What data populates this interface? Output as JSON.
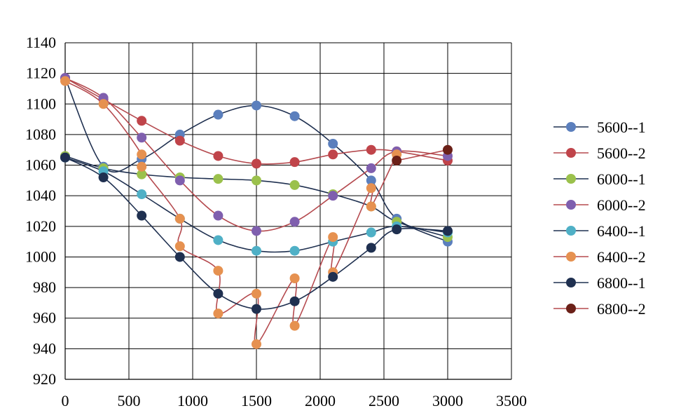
{
  "chart_data": {
    "type": "line",
    "title": "",
    "xlabel": "",
    "ylabel": "",
    "xlim": [
      0,
      3500
    ],
    "ylim": [
      920,
      1140
    ],
    "x_ticks": [
      0,
      500,
      1000,
      1500,
      2000,
      2500,
      3000,
      3500
    ],
    "y_ticks": [
      920,
      940,
      960,
      980,
      1000,
      1020,
      1040,
      1060,
      1080,
      1100,
      1120,
      1140
    ],
    "grid": true,
    "legend_position": "right",
    "series": [
      {
        "name": "5600--1",
        "marker_color": "#5b7fbd",
        "line_color": "#1f3050",
        "x": [
          0,
          300,
          600,
          900,
          1200,
          1500,
          1800,
          2100,
          2400,
          2600,
          3000
        ],
        "y": [
          1117,
          1059,
          1064,
          1080,
          1093,
          1099,
          1092,
          1074,
          1050,
          1025,
          1010
        ]
      },
      {
        "name": "5600--2",
        "marker_color": "#c0444a",
        "line_color": "#b54a4f",
        "x": [
          0,
          300,
          600,
          900,
          1200,
          1500,
          1800,
          2100,
          2400,
          2600,
          3000
        ],
        "y": [
          1117,
          1103,
          1089,
          1076,
          1066,
          1061,
          1062,
          1067,
          1070,
          1069,
          1063
        ]
      },
      {
        "name": "6000--1",
        "marker_color": "#9bc14c",
        "line_color": "#1f3050",
        "x": [
          0,
          300,
          600,
          900,
          1200,
          1500,
          1800,
          2100,
          2400,
          2600,
          3000
        ],
        "y": [
          1066,
          1058,
          1054,
          1052,
          1051,
          1050,
          1047,
          1041,
          1033,
          1023,
          1013
        ]
      },
      {
        "name": "6000--2",
        "marker_color": "#7f5fae",
        "line_color": "#b54a4f",
        "x": [
          0,
          300,
          600,
          900,
          1200,
          1500,
          1800,
          2100,
          2400,
          2600,
          3000
        ],
        "y": [
          1117,
          1104,
          1078,
          1050,
          1027,
          1017,
          1023,
          1040,
          1058,
          1069,
          1066
        ]
      },
      {
        "name": "6400--1",
        "marker_color": "#4fb0c6",
        "line_color": "#1f3050",
        "x": [
          0,
          300,
          600,
          900,
          1200,
          1500,
          1800,
          2100,
          2400,
          2600,
          3000
        ],
        "y": [
          1065,
          1056,
          1041,
          1025,
          1011,
          1004,
          1004,
          1010,
          1016,
          1020,
          1016
        ]
      },
      {
        "name": "6400--2",
        "marker_color": "#e69150",
        "line_color": "#b54a4f",
        "x": [
          0,
          300,
          600,
          600,
          900,
          900,
          1200,
          1200,
          1500,
          1500,
          1800,
          1800,
          2100,
          2100,
          2400,
          2400,
          2600
        ],
        "y": [
          1115,
          1100,
          1067,
          1059,
          1025,
          1007,
          991,
          963,
          976,
          943,
          986,
          955,
          1013,
          990,
          1045,
          1033,
          1067
        ]
      },
      {
        "name": "6800--1",
        "marker_color": "#1f3050",
        "line_color": "#1f3050",
        "x": [
          0,
          300,
          600,
          900,
          1200,
          1500,
          1800,
          2100,
          2400,
          2600,
          3000
        ],
        "y": [
          1065,
          1052,
          1027,
          1000,
          976,
          966,
          971,
          987,
          1006,
          1018,
          1017
        ]
      },
      {
        "name": "6800--2",
        "marker_color": "#6b2018",
        "line_color": "#b54a4f",
        "x": [
          2600,
          3000
        ],
        "y": [
          1063,
          1070
        ]
      }
    ]
  }
}
